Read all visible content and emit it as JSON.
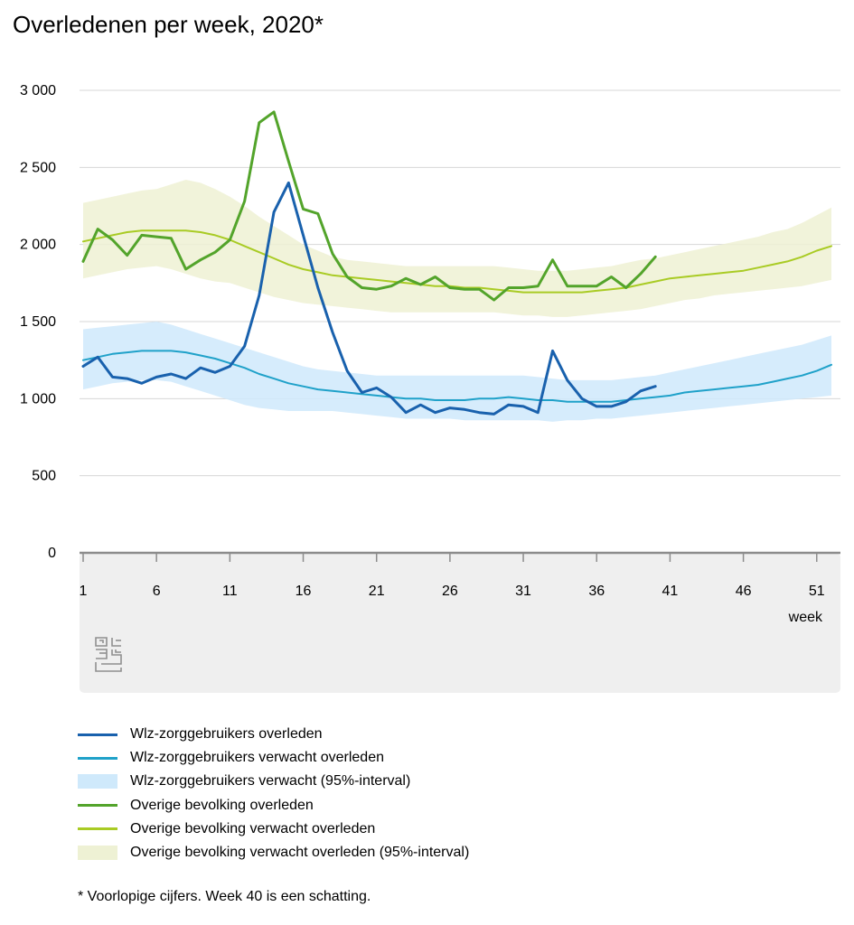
{
  "title": "Overledenen per week, 2020*",
  "footnote": "* Voorlopige cijfers. Week 40 is een schatting.",
  "colors": {
    "wlz_observed": "#1961ad",
    "wlz_expected": "#1fa1c9",
    "wlz_band": "#cfe9fb",
    "overig_observed": "#53a42b",
    "overig_expected": "#a9cb24",
    "overig_band": "#eef1d4",
    "grid": "#d7d7d7",
    "axis": "#8c8c8c",
    "footer_bg": "#efefef"
  },
  "logo": {
    "icon": "cbs-logo-icon"
  },
  "legend": [
    {
      "key": "wlz_observed",
      "label": "Wlz-zorggebruikers overleden",
      "kind": "line"
    },
    {
      "key": "wlz_expected",
      "label": "Wlz-zorggebruikers verwacht overleden",
      "kind": "line"
    },
    {
      "key": "wlz_band",
      "label": "Wlz-zorggebruikers verwacht (95%-interval)",
      "kind": "band"
    },
    {
      "key": "overig_observed",
      "label": "Overige bevolking overleden",
      "kind": "line"
    },
    {
      "key": "overig_expected",
      "label": "Overige bevolking verwacht overleden",
      "kind": "line"
    },
    {
      "key": "overig_band",
      "label": "Overige bevolking verwacht overleden (95%-interval)",
      "kind": "band"
    }
  ],
  "chart_data": {
    "type": "line",
    "title": "Overledenen per week, 2020*",
    "xlabel": "week",
    "ylabel": "",
    "ylim": [
      0,
      3000
    ],
    "xlim": [
      1,
      52
    ],
    "grid": true,
    "legend_position": "bottom",
    "y_ticks": [
      {
        "value": 0,
        "label": "0"
      },
      {
        "value": 500,
        "label": "500"
      },
      {
        "value": 1000,
        "label": "1 000"
      },
      {
        "value": 1500,
        "label": "1 500"
      },
      {
        "value": 2000,
        "label": "2 000"
      },
      {
        "value": 2500,
        "label": "2 500"
      },
      {
        "value": 3000,
        "label": "3 000"
      }
    ],
    "x_ticks": [
      {
        "value": 1,
        "label": "1"
      },
      {
        "value": 6,
        "label": "6"
      },
      {
        "value": 11,
        "label": "11"
      },
      {
        "value": 16,
        "label": "16"
      },
      {
        "value": 21,
        "label": "21"
      },
      {
        "value": 26,
        "label": "26"
      },
      {
        "value": 31,
        "label": "31"
      },
      {
        "value": 36,
        "label": "36"
      },
      {
        "value": 41,
        "label": "41"
      },
      {
        "value": 46,
        "label": "46"
      },
      {
        "value": 51,
        "label": "51"
      }
    ],
    "bands": [
      {
        "name": "Overige bevolking verwacht overleden (95%-interval)",
        "color_key": "overig_band",
        "x": [
          1,
          2,
          3,
          4,
          5,
          6,
          7,
          8,
          9,
          10,
          11,
          12,
          13,
          14,
          15,
          16,
          17,
          18,
          19,
          20,
          21,
          22,
          23,
          24,
          25,
          26,
          27,
          28,
          29,
          30,
          31,
          32,
          33,
          34,
          35,
          36,
          37,
          38,
          39,
          40,
          41,
          42,
          43,
          44,
          45,
          46,
          47,
          48,
          49,
          50,
          51,
          52
        ],
        "upper": [
          2270,
          2290,
          2310,
          2330,
          2350,
          2360,
          2390,
          2420,
          2400,
          2360,
          2310,
          2250,
          2180,
          2120,
          2060,
          2000,
          1960,
          1920,
          1900,
          1890,
          1880,
          1870,
          1860,
          1860,
          1860,
          1860,
          1860,
          1860,
          1860,
          1850,
          1840,
          1830,
          1830,
          1830,
          1840,
          1850,
          1860,
          1880,
          1900,
          1910,
          1930,
          1950,
          1970,
          1990,
          2010,
          2030,
          2050,
          2080,
          2100,
          2140,
          2190,
          2240
        ],
        "lower": [
          1780,
          1800,
          1820,
          1840,
          1850,
          1860,
          1840,
          1810,
          1780,
          1760,
          1750,
          1720,
          1690,
          1660,
          1640,
          1620,
          1610,
          1600,
          1590,
          1580,
          1570,
          1560,
          1560,
          1560,
          1560,
          1560,
          1560,
          1560,
          1560,
          1550,
          1540,
          1540,
          1530,
          1530,
          1540,
          1550,
          1560,
          1570,
          1580,
          1600,
          1620,
          1640,
          1650,
          1670,
          1680,
          1690,
          1700,
          1710,
          1720,
          1730,
          1750,
          1770
        ]
      },
      {
        "name": "Wlz-zorggebruikers verwacht (95%-interval)",
        "color_key": "wlz_band",
        "x": [
          1,
          2,
          3,
          4,
          5,
          6,
          7,
          8,
          9,
          10,
          11,
          12,
          13,
          14,
          15,
          16,
          17,
          18,
          19,
          20,
          21,
          22,
          23,
          24,
          25,
          26,
          27,
          28,
          29,
          30,
          31,
          32,
          33,
          34,
          35,
          36,
          37,
          38,
          39,
          40,
          41,
          42,
          43,
          44,
          45,
          46,
          47,
          48,
          49,
          50,
          51,
          52
        ],
        "upper": [
          1450,
          1460,
          1470,
          1480,
          1490,
          1500,
          1480,
          1450,
          1420,
          1390,
          1360,
          1330,
          1300,
          1270,
          1240,
          1210,
          1190,
          1180,
          1170,
          1160,
          1150,
          1150,
          1150,
          1150,
          1150,
          1150,
          1150,
          1150,
          1150,
          1150,
          1150,
          1140,
          1130,
          1120,
          1120,
          1120,
          1120,
          1130,
          1140,
          1150,
          1170,
          1190,
          1210,
          1230,
          1250,
          1270,
          1290,
          1310,
          1330,
          1350,
          1380,
          1410
        ],
        "lower": [
          1060,
          1080,
          1100,
          1110,
          1120,
          1120,
          1110,
          1080,
          1050,
          1020,
          990,
          960,
          940,
          930,
          920,
          920,
          920,
          920,
          910,
          900,
          890,
          880,
          870,
          870,
          870,
          870,
          860,
          860,
          860,
          860,
          860,
          860,
          850,
          860,
          860,
          870,
          870,
          880,
          890,
          900,
          910,
          920,
          930,
          940,
          950,
          960,
          970,
          980,
          990,
          1000,
          1010,
          1020
        ]
      }
    ],
    "series": [
      {
        "name": "Overige bevolking verwacht overleden",
        "color_key": "overig_expected",
        "stroke_width": 2,
        "x": [
          1,
          2,
          3,
          4,
          5,
          6,
          7,
          8,
          9,
          10,
          11,
          12,
          13,
          14,
          15,
          16,
          17,
          18,
          19,
          20,
          21,
          22,
          23,
          24,
          25,
          26,
          27,
          28,
          29,
          30,
          31,
          32,
          33,
          34,
          35,
          36,
          37,
          38,
          39,
          40,
          41,
          42,
          43,
          44,
          45,
          46,
          47,
          48,
          49,
          50,
          51,
          52
        ],
        "y": [
          2020,
          2040,
          2060,
          2080,
          2090,
          2090,
          2090,
          2090,
          2080,
          2060,
          2030,
          1990,
          1950,
          1910,
          1870,
          1840,
          1820,
          1800,
          1790,
          1780,
          1770,
          1760,
          1750,
          1740,
          1730,
          1730,
          1720,
          1720,
          1710,
          1700,
          1690,
          1690,
          1690,
          1690,
          1690,
          1700,
          1710,
          1720,
          1740,
          1760,
          1780,
          1790,
          1800,
          1810,
          1820,
          1830,
          1850,
          1870,
          1890,
          1920,
          1960,
          1990
        ]
      },
      {
        "name": "Wlz-zorggebruikers verwacht overleden",
        "color_key": "wlz_expected",
        "stroke_width": 2,
        "x": [
          1,
          2,
          3,
          4,
          5,
          6,
          7,
          8,
          9,
          10,
          11,
          12,
          13,
          14,
          15,
          16,
          17,
          18,
          19,
          20,
          21,
          22,
          23,
          24,
          25,
          26,
          27,
          28,
          29,
          30,
          31,
          32,
          33,
          34,
          35,
          36,
          37,
          38,
          39,
          40,
          41,
          42,
          43,
          44,
          45,
          46,
          47,
          48,
          49,
          50,
          51,
          52
        ],
        "y": [
          1250,
          1270,
          1290,
          1300,
          1310,
          1310,
          1310,
          1300,
          1280,
          1260,
          1230,
          1200,
          1160,
          1130,
          1100,
          1080,
          1060,
          1050,
          1040,
          1030,
          1020,
          1010,
          1000,
          1000,
          990,
          990,
          990,
          1000,
          1000,
          1010,
          1000,
          990,
          990,
          980,
          980,
          980,
          980,
          990,
          1000,
          1010,
          1020,
          1040,
          1050,
          1060,
          1070,
          1080,
          1090,
          1110,
          1130,
          1150,
          1180,
          1220
        ]
      },
      {
        "name": "Overige bevolking overleden",
        "color_key": "overig_observed",
        "stroke_width": 3,
        "x": [
          1,
          2,
          3,
          4,
          5,
          6,
          7,
          8,
          9,
          10,
          11,
          12,
          13,
          14,
          15,
          16,
          17,
          18,
          19,
          20,
          21,
          22,
          23,
          24,
          25,
          26,
          27,
          28,
          29,
          30,
          31,
          32,
          33,
          34,
          35,
          36,
          37,
          38,
          39,
          40
        ],
        "y": [
          1890,
          2100,
          2030,
          1930,
          2060,
          2050,
          2040,
          1840,
          1900,
          1950,
          2030,
          2280,
          2790,
          2860,
          2540,
          2230,
          2200,
          1940,
          1790,
          1720,
          1710,
          1730,
          1780,
          1740,
          1790,
          1720,
          1710,
          1710,
          1640,
          1720,
          1720,
          1730,
          1900,
          1730,
          1730,
          1730,
          1790,
          1720,
          1810,
          1920
        ]
      },
      {
        "name": "Wlz-zorggebruikers overleden",
        "color_key": "wlz_observed",
        "stroke_width": 3,
        "x": [
          1,
          2,
          3,
          4,
          5,
          6,
          7,
          8,
          9,
          10,
          11,
          12,
          13,
          14,
          15,
          16,
          17,
          18,
          19,
          20,
          21,
          22,
          23,
          24,
          25,
          26,
          27,
          28,
          29,
          30,
          31,
          32,
          33,
          34,
          35,
          36,
          37,
          38,
          39,
          40
        ],
        "y": [
          1210,
          1270,
          1140,
          1130,
          1100,
          1140,
          1160,
          1130,
          1200,
          1170,
          1210,
          1340,
          1670,
          2210,
          2400,
          2060,
          1720,
          1430,
          1180,
          1040,
          1070,
          1010,
          910,
          960,
          910,
          940,
          930,
          910,
          900,
          960,
          950,
          910,
          1310,
          1120,
          1000,
          950,
          950,
          980,
          1050,
          1080
        ]
      }
    ]
  }
}
